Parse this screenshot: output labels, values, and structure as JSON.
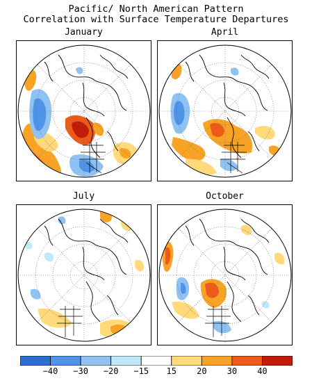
{
  "title": {
    "line1": "Pacific/ North American Pattern",
    "line2": "Correlation with Surface Temperature Departures"
  },
  "panels": [
    {
      "month": "January"
    },
    {
      "month": "April"
    },
    {
      "month": "July"
    },
    {
      "month": "October"
    }
  ],
  "colors": {
    "neg40": "#2c6fd0",
    "neg30": "#4e94e8",
    "neg20": "#8fc2f3",
    "neg15": "#bfe8f8",
    "pos20": "#ffd97a",
    "pos30": "#f7a326",
    "pos40": "#ec5b19",
    "pos50": "#c41a08"
  },
  "colorbar": {
    "colors": [
      "#2c6fd0",
      "#4e94e8",
      "#8fc2f3",
      "#bfe8f8",
      "#ffffff",
      "#ffd97a",
      "#f7a326",
      "#ec5b19",
      "#c41a08"
    ],
    "ticks": [
      "−40",
      "−30",
      "−20",
      "−15",
      "15",
      "20",
      "30",
      "40"
    ]
  }
}
